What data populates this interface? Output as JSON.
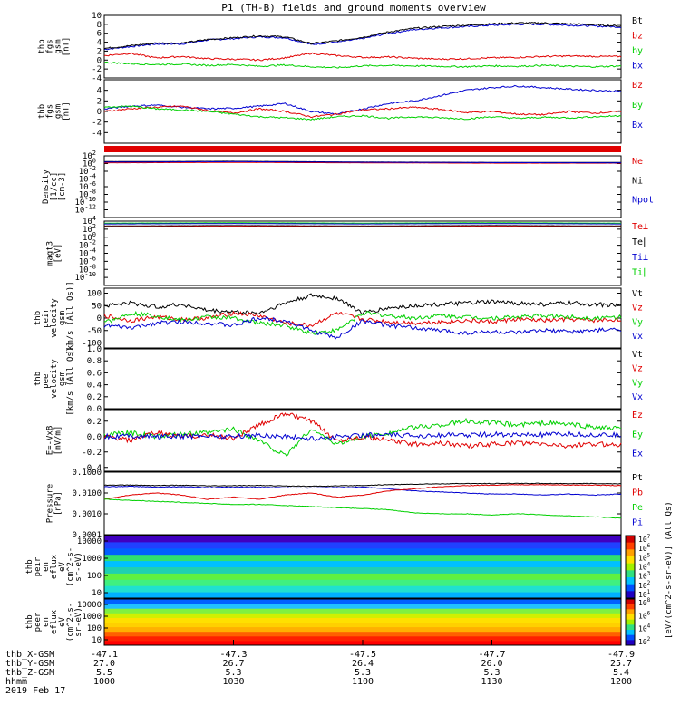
{
  "title": "P1 (TH-B) fields and ground moments overview",
  "colors": {
    "black": "#000000",
    "red": "#e00000",
    "green": "#00d000",
    "blue": "#0000d0"
  },
  "chart_data": [
    {
      "id": "fgs-gsm",
      "type": "line",
      "ylabel": [
        "thb",
        "fgs",
        "gsm",
        "[nT]"
      ],
      "ylim": [
        -4,
        10
      ],
      "yticks": [
        -4,
        -2,
        0,
        2,
        4,
        6,
        8,
        10
      ],
      "legend": [
        {
          "text": "Bt",
          "color": "black"
        },
        {
          "text": "bz",
          "color": "red"
        },
        {
          "text": "by",
          "color": "green"
        },
        {
          "text": "bx",
          "color": "blue"
        }
      ],
      "x": [
        1000,
        1010,
        1020,
        1030,
        1040,
        1050,
        1060,
        1070,
        1080,
        1090,
        1100,
        1110,
        1120,
        1130,
        1140,
        1150,
        1160,
        1170,
        1180,
        1190,
        1200
      ],
      "series": [
        {
          "name": "bx",
          "color": "blue",
          "values": [
            2.4,
            3.0,
            3.6,
            3.6,
            4.5,
            4.8,
            5.2,
            5.0,
            3.5,
            4.0,
            4.8,
            6.0,
            6.8,
            7.2,
            7.5,
            7.8,
            8.0,
            8.0,
            7.8,
            7.6,
            7.4
          ]
        },
        {
          "name": "Bt",
          "color": "black",
          "values": [
            2.6,
            3.2,
            3.8,
            3.8,
            4.6,
            5.0,
            5.4,
            5.2,
            3.7,
            4.3,
            5.1,
            6.3,
            7.1,
            7.5,
            7.8,
            8.1,
            8.3,
            8.3,
            8.1,
            7.9,
            7.6
          ]
        },
        {
          "name": "bz",
          "color": "red",
          "values": [
            1.0,
            1.5,
            0.5,
            0.8,
            0.3,
            0.2,
            0.0,
            0.5,
            1.5,
            1.0,
            0.6,
            0.7,
            0.4,
            0.2,
            0.3,
            0.5,
            0.6,
            0.8,
            0.9,
            0.8,
            0.8
          ]
        },
        {
          "name": "by",
          "color": "green",
          "values": [
            -0.5,
            -0.8,
            -1.0,
            -0.9,
            -1.2,
            -1.0,
            -1.4,
            -1.1,
            -1.5,
            -1.7,
            -1.3,
            -1.2,
            -1.3,
            -1.4,
            -1.5,
            -1.3,
            -1.4,
            -1.2,
            -1.4,
            -1.5,
            -1.3
          ]
        }
      ]
    },
    {
      "id": "fgs-dsl",
      "type": "line",
      "ylabel": [
        "thb",
        "fgs",
        "gsm",
        "[nT]"
      ],
      "ylim": [
        -6,
        6
      ],
      "yticks": [
        -4,
        -2,
        0,
        2,
        4
      ],
      "legend": [
        {
          "text": "Bz",
          "color": "red"
        },
        {
          "text": "By",
          "color": "green"
        },
        {
          "text": "Bx",
          "color": "blue"
        }
      ],
      "x": [
        1000,
        1010,
        1020,
        1030,
        1040,
        1050,
        1060,
        1070,
        1080,
        1090,
        1100,
        1110,
        1120,
        1130,
        1140,
        1150,
        1160,
        1170,
        1180,
        1190,
        1200
      ],
      "series": [
        {
          "name": "Bx",
          "color": "blue",
          "values": [
            0.5,
            1.0,
            1.2,
            0.8,
            0.5,
            0.6,
            1.0,
            1.5,
            0.0,
            -0.5,
            0.5,
            1.5,
            2.0,
            3.0,
            4.0,
            4.5,
            4.8,
            4.5,
            4.2,
            4.0,
            3.8
          ]
        },
        {
          "name": "Bz",
          "color": "red",
          "values": [
            0.0,
            0.5,
            0.8,
            1.0,
            0.2,
            -0.3,
            0.5,
            0.0,
            -1.0,
            -0.5,
            0.3,
            0.5,
            0.8,
            0.4,
            -0.2,
            0.0,
            -0.5,
            -0.6,
            0.0,
            -0.3,
            0.0
          ]
        },
        {
          "name": "By",
          "color": "green",
          "values": [
            0.8,
            1.0,
            0.5,
            0.3,
            0.0,
            -0.5,
            -1.0,
            -1.2,
            -1.5,
            -1.0,
            -0.8,
            -1.3,
            -1.0,
            -1.2,
            -1.4,
            -1.0,
            -1.3,
            -1.1,
            -1.2,
            -1.0,
            -0.8
          ]
        }
      ]
    },
    {
      "id": "density",
      "type": "line",
      "scale": "log",
      "ylabel": [
        "Density",
        "[1/cc]",
        "[cm-3]"
      ],
      "ylim_exp": [
        -14,
        2
      ],
      "ytick_exps": [
        -12,
        -10,
        -8,
        -6,
        -4,
        -2,
        0,
        2
      ],
      "legend": [
        {
          "text": "Ne",
          "color": "red"
        },
        {
          "text": "Ni",
          "color": "black"
        },
        {
          "text": "Npot",
          "color": "blue"
        }
      ],
      "x": [
        1000,
        1050,
        1100,
        1150,
        1200
      ],
      "series": [
        {
          "name": "Ne",
          "color": "red",
          "values_exp": [
            0.2,
            0.3,
            0.2,
            0.1,
            0.1
          ]
        },
        {
          "name": "Ni",
          "color": "black",
          "values_exp": [
            0.5,
            0.6,
            0.4,
            0.3,
            0.3
          ]
        },
        {
          "name": "Npot",
          "color": "blue",
          "values_exp": [
            0.4,
            0.5,
            0.35,
            0.25,
            0.2
          ]
        }
      ]
    },
    {
      "id": "temperature",
      "type": "line",
      "scale": "log",
      "ylabel": [
        "magt3",
        "[eV]"
      ],
      "ylim_exp": [
        -12,
        4
      ],
      "ytick_exps": [
        -10,
        -8,
        -6,
        -4,
        -2,
        0,
        2,
        4
      ],
      "legend": [
        {
          "text": "Te⊥",
          "color": "red"
        },
        {
          "text": "Te∥",
          "color": "black"
        },
        {
          "text": "Ti⊥",
          "color": "blue"
        },
        {
          "text": "Ti∥",
          "color": "green"
        }
      ],
      "x": [
        1000,
        1050,
        1100,
        1150,
        1200
      ],
      "series": [
        {
          "name": "Ti∥",
          "color": "green",
          "values_exp": [
            3.5,
            3.6,
            3.5,
            3.6,
            3.5
          ]
        },
        {
          "name": "Ti⊥",
          "color": "blue",
          "values_exp": [
            3.3,
            3.4,
            3.3,
            3.4,
            3.3
          ]
        },
        {
          "name": "Te∥",
          "color": "black",
          "values_exp": [
            2.8,
            2.9,
            2.8,
            2.9,
            2.8
          ]
        },
        {
          "name": "Te⊥",
          "color": "red",
          "values_exp": [
            2.6,
            2.7,
            2.6,
            2.7,
            2.6
          ]
        }
      ]
    },
    {
      "id": "peir-velocity",
      "type": "line",
      "ylabel": [
        "thb",
        "peir",
        "velocity",
        "gsm",
        "[km/s (All Qs)]"
      ],
      "ylim": [
        -120,
        120
      ],
      "yticks": [
        -100,
        -50,
        0,
        50,
        100
      ],
      "legend": [
        {
          "text": "Vt",
          "color": "black"
        },
        {
          "text": "Vz",
          "color": "red"
        },
        {
          "text": "Vy",
          "color": "green"
        },
        {
          "text": "Vx",
          "color": "blue"
        }
      ],
      "x": [
        1000,
        1010,
        1020,
        1030,
        1040,
        1050,
        1060,
        1070,
        1080,
        1090,
        1100,
        1110,
        1120,
        1130,
        1140,
        1150,
        1160,
        1170,
        1180,
        1190,
        1200
      ],
      "series": [
        {
          "name": "Vt",
          "color": "black",
          "values": [
            50,
            60,
            45,
            55,
            30,
            25,
            20,
            60,
            90,
            80,
            20,
            40,
            50,
            55,
            60,
            65,
            60,
            55,
            60,
            55,
            50
          ]
        },
        {
          "name": "Vz",
          "color": "red",
          "values": [
            10,
            -10,
            5,
            -5,
            0,
            20,
            10,
            -20,
            -30,
            20,
            -5,
            -15,
            -20,
            -15,
            -10,
            -15,
            -5,
            -10,
            -5,
            -10,
            -5
          ]
        },
        {
          "name": "Vy",
          "color": "green",
          "values": [
            -20,
            20,
            10,
            -10,
            5,
            0,
            -20,
            -30,
            -60,
            -50,
            20,
            10,
            0,
            10,
            5,
            0,
            5,
            10,
            5,
            0,
            5
          ]
        },
        {
          "name": "Vx",
          "color": "blue",
          "values": [
            -30,
            -40,
            -20,
            -15,
            -20,
            -30,
            0,
            -10,
            -50,
            -80,
            -10,
            -30,
            -40,
            -50,
            -60,
            -55,
            -60,
            -50,
            -55,
            -50,
            -45
          ]
        }
      ]
    },
    {
      "id": "peer-velocity",
      "type": "line",
      "ylabel": [
        "thb",
        "peer",
        "velocity",
        "gsm",
        "[km/s (All Qs)]"
      ],
      "ylim": [
        0,
        1
      ],
      "yticks": [
        0.0,
        0.2,
        0.4,
        0.6,
        0.8,
        1.0
      ],
      "legend": [
        {
          "text": "Vt",
          "color": "black"
        },
        {
          "text": "Vz",
          "color": "red"
        },
        {
          "text": "Vy",
          "color": "green"
        },
        {
          "text": "Vx",
          "color": "blue"
        }
      ],
      "x": [],
      "series": []
    },
    {
      "id": "efield",
      "type": "line",
      "ylabel": [
        "E=-VxB",
        "[mV/m]"
      ],
      "ylim": [
        -0.45,
        0.35
      ],
      "yticks": [
        -0.4,
        -0.2,
        0.0,
        0.2
      ],
      "legend": [
        {
          "text": "Ez",
          "color": "red"
        },
        {
          "text": "Ey",
          "color": "green"
        },
        {
          "text": "Ex",
          "color": "blue"
        }
      ],
      "x": [
        1000,
        1010,
        1020,
        1030,
        1040,
        1050,
        1060,
        1070,
        1080,
        1090,
        1100,
        1110,
        1120,
        1130,
        1140,
        1150,
        1160,
        1170,
        1180,
        1190,
        1200
      ],
      "series": [
        {
          "name": "Ey",
          "color": "green",
          "values": [
            0.02,
            0.05,
            0.0,
            0.03,
            0.05,
            0.1,
            -0.05,
            -0.25,
            0.1,
            -0.1,
            0.0,
            0.05,
            0.12,
            0.15,
            0.2,
            0.18,
            0.15,
            0.18,
            0.16,
            0.12,
            0.1
          ]
        },
        {
          "name": "Ez",
          "color": "red",
          "values": [
            0.0,
            -0.05,
            0.05,
            0.0,
            0.02,
            -0.02,
            0.15,
            0.3,
            0.2,
            -0.05,
            0.0,
            -0.05,
            -0.1,
            -0.08,
            -0.12,
            -0.1,
            -0.08,
            -0.1,
            -0.12,
            -0.1,
            -0.1
          ]
        },
        {
          "name": "Ex",
          "color": "blue",
          "values": [
            0.0,
            0.01,
            0.0,
            0.0,
            0.01,
            0.0,
            0.02,
            0.0,
            -0.03,
            0.0,
            0.02,
            0.02,
            0.01,
            0.02,
            0.02,
            0.03,
            0.02,
            0.02,
            0.03,
            0.02,
            0.02
          ]
        }
      ]
    },
    {
      "id": "pressure",
      "type": "line",
      "scale": "log",
      "ylabel": [
        "Pressure",
        "[nPa]"
      ],
      "ylim_exp": [
        -4,
        -1
      ],
      "ytick_labels": [
        "0.0001",
        "0.0010",
        "0.0100",
        "0.1000"
      ],
      "legend": [
        {
          "text": "Pt",
          "color": "black"
        },
        {
          "text": "Pb",
          "color": "red"
        },
        {
          "text": "Pe",
          "color": "green"
        },
        {
          "text": "Pi",
          "color": "blue"
        }
      ],
      "x": [
        1000,
        1010,
        1020,
        1030,
        1040,
        1050,
        1060,
        1070,
        1080,
        1090,
        1100,
        1110,
        1120,
        1130,
        1140,
        1150,
        1160,
        1170,
        1180,
        1190,
        1200
      ],
      "series": [
        {
          "name": "Pt",
          "color": "black",
          "values_exp": [
            -1.62,
            -1.62,
            -1.64,
            -1.63,
            -1.66,
            -1.65,
            -1.64,
            -1.66,
            -1.68,
            -1.66,
            -1.64,
            -1.6,
            -1.58,
            -1.56,
            -1.55,
            -1.55,
            -1.54,
            -1.54,
            -1.55,
            -1.55,
            -1.56
          ]
        },
        {
          "name": "Pi",
          "color": "blue",
          "values_exp": [
            -1.7,
            -1.68,
            -1.72,
            -1.7,
            -1.74,
            -1.72,
            -1.73,
            -1.75,
            -1.76,
            -1.74,
            -1.72,
            -1.8,
            -1.9,
            -1.95,
            -2.0,
            -2.05,
            -2.05,
            -2.1,
            -2.05,
            -2.1,
            -2.05
          ]
        },
        {
          "name": "Pb",
          "color": "red",
          "values_exp": [
            -2.3,
            -2.1,
            -2.0,
            -2.1,
            -2.3,
            -2.2,
            -2.3,
            -2.1,
            -2.0,
            -2.2,
            -2.1,
            -1.9,
            -1.8,
            -1.7,
            -1.65,
            -1.62,
            -1.6,
            -1.6,
            -1.62,
            -1.62,
            -1.65
          ]
        },
        {
          "name": "Pe",
          "color": "green",
          "values_exp": [
            -2.3,
            -2.35,
            -2.4,
            -2.45,
            -2.5,
            -2.55,
            -2.55,
            -2.6,
            -2.65,
            -2.7,
            -2.75,
            -2.8,
            -2.95,
            -3.0,
            -3.0,
            -3.05,
            -3.0,
            -3.05,
            -3.1,
            -3.15,
            -3.2
          ]
        }
      ]
    },
    {
      "id": "peir-eflux",
      "type": "heatmap",
      "ylabel": [
        "thb",
        "peir",
        "en",
        "eflux",
        "eV",
        "(cm^2-s-",
        "sr-eV)"
      ],
      "ytick_labels": [
        "10",
        "100",
        "1000",
        "10000"
      ],
      "colorbar_exps": [
        1,
        2,
        3,
        4,
        5,
        6,
        7
      ],
      "colorbar_label": "[eV/(cm^2-s-sr-eV)] (All Qs)"
    },
    {
      "id": "peer-eflux",
      "type": "heatmap",
      "ylabel": [
        "thb",
        "peer",
        "en",
        "eflux",
        "eV",
        "(cm^2-s-",
        "sr-eV)"
      ],
      "ytick_labels": [
        "10",
        "100",
        "1000",
        "10000"
      ],
      "colorbar_exps": [
        2,
        4,
        6,
        8
      ]
    }
  ],
  "xaxis": {
    "tick_hhmm": [
      1000,
      1030,
      1100,
      1130,
      1200
    ],
    "rows": [
      {
        "label": "thb_X-GSM",
        "values": [
          "-47.1",
          "-47.3",
          "-47.5",
          "-47.7",
          "-47.9"
        ]
      },
      {
        "label": "thb_Y-GSM",
        "values": [
          "27.0",
          "26.7",
          "26.4",
          "26.0",
          "25.7"
        ]
      },
      {
        "label": "thb_Z-GSM",
        "values": [
          "5.5",
          "5.3",
          "5.3",
          "5.3",
          "5.4"
        ]
      },
      {
        "label": "hhmm",
        "values": [
          "1000",
          "1030",
          "1100",
          "1130",
          "1200"
        ]
      }
    ],
    "date": "2019 Feb 17"
  }
}
